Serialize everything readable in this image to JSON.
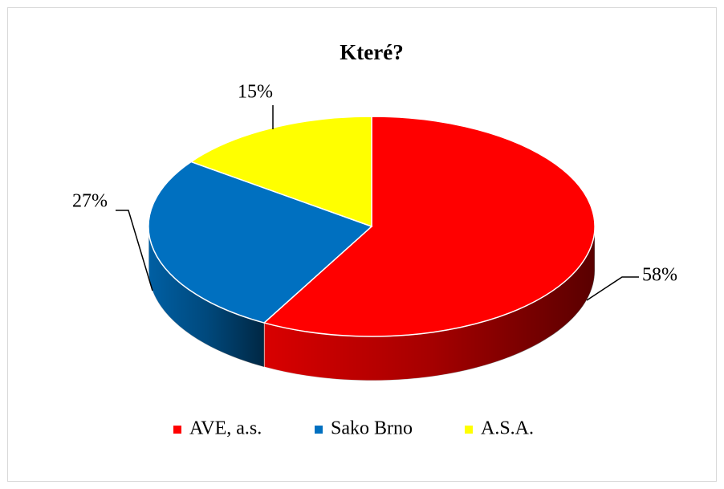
{
  "chart_data": {
    "type": "pie3d",
    "title": "Které?",
    "categories": [
      "AVE, a.s.",
      "Sako Brno",
      "A.S.A."
    ],
    "values": [
      58,
      27,
      15
    ],
    "value_labels": [
      "58%",
      "27%",
      "15%"
    ],
    "colors": [
      "#ff0000",
      "#0070c0",
      "#ffff00"
    ],
    "legend": "bottom"
  }
}
